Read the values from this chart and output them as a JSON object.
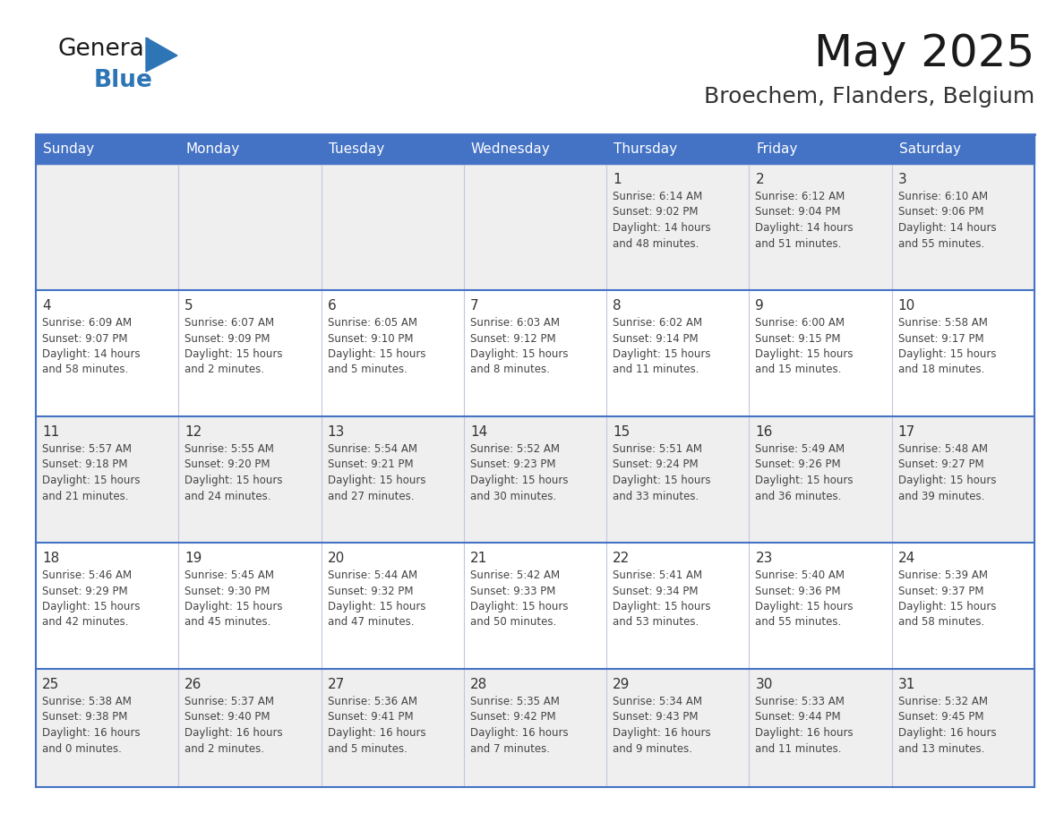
{
  "title": "May 2025",
  "subtitle": "Broechem, Flanders, Belgium",
  "header_bg_color": "#4472C4",
  "header_text_color": "#FFFFFF",
  "cell_bg_white": "#FFFFFF",
  "cell_bg_gray": "#EFEFEF",
  "grid_color": "#4472C4",
  "grid_color_light": "#C0C8E0",
  "day_number_color": "#333333",
  "cell_text_color": "#444444",
  "title_color": "#1a1a1a",
  "subtitle_color": "#333333",
  "logo_general_color": "#1a1a1a",
  "logo_blue_color": "#2E75B6",
  "days_of_week": [
    "Sunday",
    "Monday",
    "Tuesday",
    "Wednesday",
    "Thursday",
    "Friday",
    "Saturday"
  ],
  "weeks": [
    [
      "",
      "",
      "",
      "",
      "1",
      "2",
      "3"
    ],
    [
      "4",
      "5",
      "6",
      "7",
      "8",
      "9",
      "10"
    ],
    [
      "11",
      "12",
      "13",
      "14",
      "15",
      "16",
      "17"
    ],
    [
      "18",
      "19",
      "20",
      "21",
      "22",
      "23",
      "24"
    ],
    [
      "25",
      "26",
      "27",
      "28",
      "29",
      "30",
      "31"
    ]
  ],
  "row_bg_colors": [
    "#EFEFEF",
    "#FFFFFF",
    "#EFEFEF",
    "#FFFFFF",
    "#EFEFEF"
  ],
  "cell_data": {
    "1": "Sunrise: 6:14 AM\nSunset: 9:02 PM\nDaylight: 14 hours\nand 48 minutes.",
    "2": "Sunrise: 6:12 AM\nSunset: 9:04 PM\nDaylight: 14 hours\nand 51 minutes.",
    "3": "Sunrise: 6:10 AM\nSunset: 9:06 PM\nDaylight: 14 hours\nand 55 minutes.",
    "4": "Sunrise: 6:09 AM\nSunset: 9:07 PM\nDaylight: 14 hours\nand 58 minutes.",
    "5": "Sunrise: 6:07 AM\nSunset: 9:09 PM\nDaylight: 15 hours\nand 2 minutes.",
    "6": "Sunrise: 6:05 AM\nSunset: 9:10 PM\nDaylight: 15 hours\nand 5 minutes.",
    "7": "Sunrise: 6:03 AM\nSunset: 9:12 PM\nDaylight: 15 hours\nand 8 minutes.",
    "8": "Sunrise: 6:02 AM\nSunset: 9:14 PM\nDaylight: 15 hours\nand 11 minutes.",
    "9": "Sunrise: 6:00 AM\nSunset: 9:15 PM\nDaylight: 15 hours\nand 15 minutes.",
    "10": "Sunrise: 5:58 AM\nSunset: 9:17 PM\nDaylight: 15 hours\nand 18 minutes.",
    "11": "Sunrise: 5:57 AM\nSunset: 9:18 PM\nDaylight: 15 hours\nand 21 minutes.",
    "12": "Sunrise: 5:55 AM\nSunset: 9:20 PM\nDaylight: 15 hours\nand 24 minutes.",
    "13": "Sunrise: 5:54 AM\nSunset: 9:21 PM\nDaylight: 15 hours\nand 27 minutes.",
    "14": "Sunrise: 5:52 AM\nSunset: 9:23 PM\nDaylight: 15 hours\nand 30 minutes.",
    "15": "Sunrise: 5:51 AM\nSunset: 9:24 PM\nDaylight: 15 hours\nand 33 minutes.",
    "16": "Sunrise: 5:49 AM\nSunset: 9:26 PM\nDaylight: 15 hours\nand 36 minutes.",
    "17": "Sunrise: 5:48 AM\nSunset: 9:27 PM\nDaylight: 15 hours\nand 39 minutes.",
    "18": "Sunrise: 5:46 AM\nSunset: 9:29 PM\nDaylight: 15 hours\nand 42 minutes.",
    "19": "Sunrise: 5:45 AM\nSunset: 9:30 PM\nDaylight: 15 hours\nand 45 minutes.",
    "20": "Sunrise: 5:44 AM\nSunset: 9:32 PM\nDaylight: 15 hours\nand 47 minutes.",
    "21": "Sunrise: 5:42 AM\nSunset: 9:33 PM\nDaylight: 15 hours\nand 50 minutes.",
    "22": "Sunrise: 5:41 AM\nSunset: 9:34 PM\nDaylight: 15 hours\nand 53 minutes.",
    "23": "Sunrise: 5:40 AM\nSunset: 9:36 PM\nDaylight: 15 hours\nand 55 minutes.",
    "24": "Sunrise: 5:39 AM\nSunset: 9:37 PM\nDaylight: 15 hours\nand 58 minutes.",
    "25": "Sunrise: 5:38 AM\nSunset: 9:38 PM\nDaylight: 16 hours\nand 0 minutes.",
    "26": "Sunrise: 5:37 AM\nSunset: 9:40 PM\nDaylight: 16 hours\nand 2 minutes.",
    "27": "Sunrise: 5:36 AM\nSunset: 9:41 PM\nDaylight: 16 hours\nand 5 minutes.",
    "28": "Sunrise: 5:35 AM\nSunset: 9:42 PM\nDaylight: 16 hours\nand 7 minutes.",
    "29": "Sunrise: 5:34 AM\nSunset: 9:43 PM\nDaylight: 16 hours\nand 9 minutes.",
    "30": "Sunrise: 5:33 AM\nSunset: 9:44 PM\nDaylight: 16 hours\nand 11 minutes.",
    "31": "Sunrise: 5:32 AM\nSunset: 9:45 PM\nDaylight: 16 hours\nand 13 minutes."
  },
  "figsize": [
    11.88,
    9.18
  ],
  "dpi": 100
}
